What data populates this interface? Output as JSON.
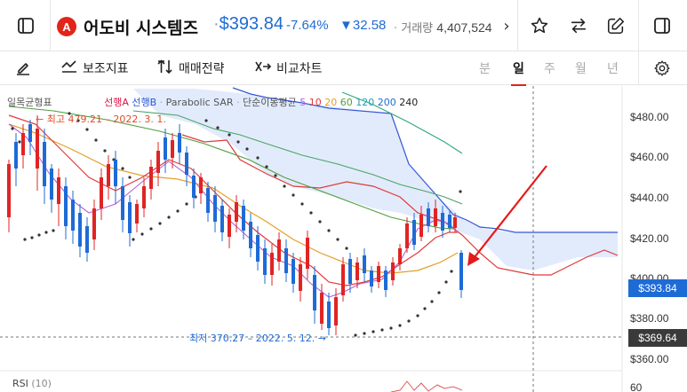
{
  "header": {
    "logo_text": "A",
    "title": "어도비 시스템즈",
    "price": "$393.84",
    "change_pct": "-7.64%",
    "change_abs": "▼32.58",
    "volume_label": "거래량",
    "volume_value": "4,407,524",
    "more": "›"
  },
  "toolbar": {
    "aux_indicators": "보조지표",
    "trade_strategy": "매매전략",
    "compare_chart": "비교차트",
    "periods": [
      "분",
      "일",
      "주",
      "월",
      "년"
    ],
    "active_period": "일"
  },
  "legend": {
    "ichimoku": "일목균형표",
    "span_a": "선행A",
    "span_b": "선행B",
    "psar": "Parabolic SAR",
    "sma": "단순이동평균",
    "sma_periods": [
      "5",
      "10",
      "20",
      "60",
      "120",
      "200",
      "240"
    ]
  },
  "annotations": {
    "high": "← 최고 479.21 – 2022. 3. 1.",
    "low": "최저 370.27 – 2022. 5. 12. →"
  },
  "price_axis": [
    "$480.00",
    "$460.00",
    "$440.00",
    "$420.00",
    "$400.00",
    "$380.00",
    "$360.00"
  ],
  "price_tags": {
    "current": "$393.84",
    "cursor": "$369.64"
  },
  "rsi": {
    "label": "RSI",
    "period": "(10)",
    "axis": "60"
  },
  "colors": {
    "up": "#e02424",
    "down": "#1e6bd6",
    "accent": "#e1251b",
    "cloud": "#dfe8fb"
  }
}
